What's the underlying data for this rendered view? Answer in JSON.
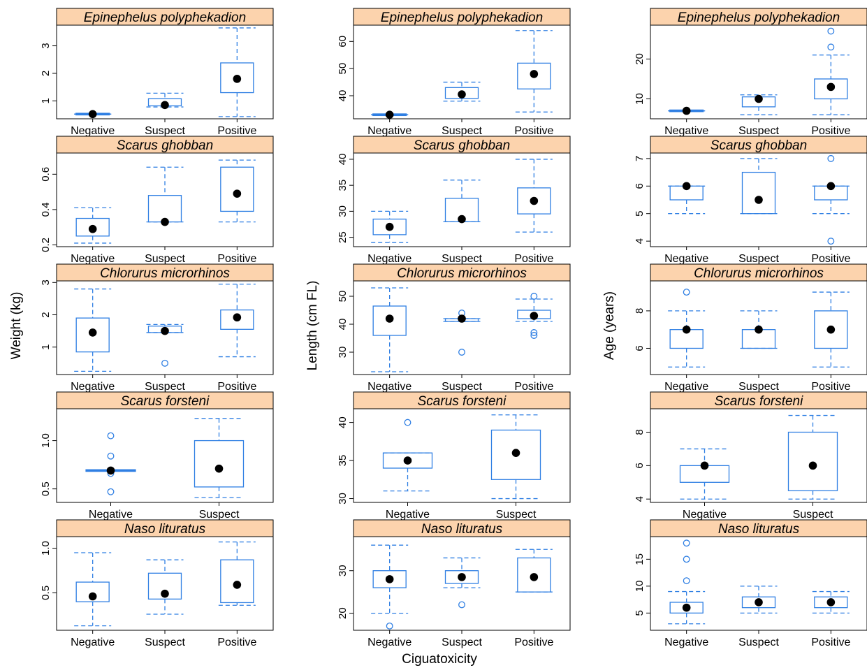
{
  "chart_data": {
    "type": "box",
    "xlabel": "Ciguatoxicity",
    "ylabels": [
      "Weight (kg)",
      "Length (cm FL)",
      "Age (years)"
    ],
    "species": [
      "Epinephelus polyphekadion",
      "Scarus ghobban",
      "Chlorurus microrhinos",
      "Scarus forsteni",
      "Naso lituratus"
    ],
    "panels": [
      {
        "species": "Epinephelus polyphekadion",
        "measure": "Weight (kg)",
        "ylim": [
          0.35,
          3.75
        ],
        "yticks": [
          1,
          2,
          3
        ],
        "groups": [
          {
            "category": "Negative",
            "whisker_low": 0.52,
            "q1": 0.52,
            "q3": 0.52,
            "whisker_high": 0.52,
            "median": 0.52,
            "outliers": []
          },
          {
            "category": "Suspect",
            "whisker_low": 0.78,
            "q1": 0.82,
            "q3": 1.08,
            "whisker_high": 1.28,
            "median": 0.85,
            "outliers": []
          },
          {
            "category": "Positive",
            "whisker_low": 0.43,
            "q1": 1.3,
            "q3": 2.38,
            "whisker_high": 3.65,
            "median": 1.8,
            "outliers": []
          }
        ]
      },
      {
        "species": "Epinephelus polyphekadion",
        "measure": "Length (cm FL)",
        "ylim": [
          31.5,
          66
        ],
        "yticks": [
          40,
          50,
          60
        ],
        "groups": [
          {
            "category": "Negative",
            "whisker_low": 33,
            "q1": 33,
            "q3": 33,
            "whisker_high": 33,
            "median": 33,
            "outliers": []
          },
          {
            "category": "Suspect",
            "whisker_low": 38,
            "q1": 39,
            "q3": 43,
            "whisker_high": 45,
            "median": 40.5,
            "outliers": []
          },
          {
            "category": "Positive",
            "whisker_low": 34,
            "q1": 42.5,
            "q3": 52,
            "whisker_high": 64,
            "median": 48,
            "outliers": []
          }
        ]
      },
      {
        "species": "Epinephelus polyphekadion",
        "measure": "Age (years)",
        "ylim": [
          5,
          28.5
        ],
        "yticks": [
          10,
          20
        ],
        "groups": [
          {
            "category": "Negative",
            "whisker_low": 7,
            "q1": 7,
            "q3": 7,
            "whisker_high": 7,
            "median": 7,
            "outliers": []
          },
          {
            "category": "Suspect",
            "whisker_low": 6,
            "q1": 8,
            "q3": 10.5,
            "whisker_high": 11,
            "median": 10,
            "outliers": []
          },
          {
            "category": "Positive",
            "whisker_low": 6,
            "q1": 10,
            "q3": 15,
            "whisker_high": 21,
            "median": 13,
            "outliers": [
              23,
              27
            ]
          }
        ]
      },
      {
        "species": "Scarus ghobban",
        "measure": "Weight (kg)",
        "ylim": [
          0.19,
          0.72
        ],
        "yticks": [
          0.2,
          0.4,
          0.6
        ],
        "groups": [
          {
            "category": "Negative",
            "whisker_low": 0.21,
            "q1": 0.25,
            "q3": 0.35,
            "whisker_high": 0.41,
            "median": 0.29,
            "outliers": []
          },
          {
            "category": "Suspect",
            "whisker_low": 0.33,
            "q1": 0.33,
            "q3": 0.48,
            "whisker_high": 0.64,
            "median": 0.33,
            "outliers": []
          },
          {
            "category": "Positive",
            "whisker_low": 0.33,
            "q1": 0.39,
            "q3": 0.64,
            "whisker_high": 0.68,
            "median": 0.49,
            "outliers": []
          }
        ]
      },
      {
        "species": "Scarus ghobban",
        "measure": "Length (cm FL)",
        "ylim": [
          23.2,
          41.2
        ],
        "yticks": [
          25,
          30,
          35,
          40
        ],
        "groups": [
          {
            "category": "Negative",
            "whisker_low": 24,
            "q1": 25.5,
            "q3": 28.5,
            "whisker_high": 30,
            "median": 27,
            "outliers": []
          },
          {
            "category": "Suspect",
            "whisker_low": 28,
            "q1": 28,
            "q3": 32.5,
            "whisker_high": 36,
            "median": 28.5,
            "outliers": []
          },
          {
            "category": "Positive",
            "whisker_low": 26,
            "q1": 29.5,
            "q3": 34.5,
            "whisker_high": 40,
            "median": 32,
            "outliers": []
          }
        ]
      },
      {
        "species": "Scarus ghobban",
        "measure": "Age (years)",
        "ylim": [
          3.8,
          7.2
        ],
        "yticks": [
          4,
          5,
          6,
          7
        ],
        "groups": [
          {
            "category": "Negative",
            "whisker_low": 5,
            "q1": 5.5,
            "q3": 6,
            "whisker_high": 6,
            "median": 6,
            "outliers": []
          },
          {
            "category": "Suspect",
            "whisker_low": 5,
            "q1": 5,
            "q3": 6.5,
            "whisker_high": 7,
            "median": 5.5,
            "outliers": []
          },
          {
            "category": "Positive",
            "whisker_low": 5,
            "q1": 5.5,
            "q3": 6,
            "whisker_high": 6,
            "median": 6,
            "outliers": [
              7,
              4
            ]
          }
        ]
      },
      {
        "species": "Chlorurus microrhinos",
        "measure": "Weight (kg)",
        "ylim": [
          0.15,
          3.05
        ],
        "yticks": [
          1,
          2,
          3
        ],
        "groups": [
          {
            "category": "Negative",
            "whisker_low": 0.25,
            "q1": 0.85,
            "q3": 1.9,
            "whisker_high": 2.8,
            "median": 1.45,
            "outliers": []
          },
          {
            "category": "Suspect",
            "whisker_low": 1.45,
            "q1": 1.45,
            "q3": 1.65,
            "whisker_high": 1.7,
            "median": 1.5,
            "outliers": [
              0.5
            ]
          },
          {
            "category": "Positive",
            "whisker_low": 0.7,
            "q1": 1.55,
            "q3": 2.15,
            "whisker_high": 2.95,
            "median": 1.92,
            "outliers": []
          }
        ]
      },
      {
        "species": "Chlorurus microrhinos",
        "measure": "Length (cm FL)",
        "ylim": [
          22,
          55.5
        ],
        "yticks": [
          30,
          40,
          50
        ],
        "groups": [
          {
            "category": "Negative",
            "whisker_low": 23,
            "q1": 36,
            "q3": 46.5,
            "whisker_high": 53,
            "median": 42,
            "outliers": []
          },
          {
            "category": "Suspect",
            "whisker_low": 41,
            "q1": 41,
            "q3": 42,
            "whisker_high": 42,
            "median": 42,
            "outliers": [
              44,
              30
            ]
          },
          {
            "category": "Positive",
            "whisker_low": 41,
            "q1": 42,
            "q3": 45,
            "whisker_high": 49,
            "median": 43,
            "outliers": [
              50,
              37,
              36
            ]
          }
        ]
      },
      {
        "species": "Chlorurus microrhinos",
        "measure": "Age (years)",
        "ylim": [
          4.6,
          9.6
        ],
        "yticks": [
          6,
          8
        ],
        "groups": [
          {
            "category": "Negative",
            "whisker_low": 5,
            "q1": 6,
            "q3": 7,
            "whisker_high": 8,
            "median": 7,
            "outliers": [
              9
            ]
          },
          {
            "category": "Suspect",
            "whisker_low": 6,
            "q1": 6,
            "q3": 7,
            "whisker_high": 8,
            "median": 7,
            "outliers": []
          },
          {
            "category": "Positive",
            "whisker_low": 5,
            "q1": 6,
            "q3": 8,
            "whisker_high": 9,
            "median": 7,
            "outliers": []
          }
        ]
      },
      {
        "species": "Scarus forsteni",
        "measure": "Weight (kg)",
        "ylim": [
          0.36,
          1.33
        ],
        "yticks": [
          0.5,
          1.0
        ],
        "groups": [
          {
            "category": "Negative",
            "whisker_low": 0.69,
            "q1": 0.69,
            "q3": 0.69,
            "whisker_high": 0.69,
            "median": 0.69,
            "outliers": [
              1.05,
              0.84,
              0.66,
              0.47
            ]
          },
          {
            "category": "Suspect",
            "whisker_low": 0.41,
            "q1": 0.52,
            "q3": 1.0,
            "whisker_high": 1.23,
            "median": 0.71,
            "outliers": []
          }
        ]
      },
      {
        "species": "Scarus forsteni",
        "measure": "Length (cm FL)",
        "ylim": [
          29.5,
          41.8
        ],
        "yticks": [
          30,
          35,
          40
        ],
        "groups": [
          {
            "category": "Negative",
            "whisker_low": 31,
            "q1": 34,
            "q3": 36,
            "whisker_high": 36,
            "median": 35,
            "outliers": [
              40
            ]
          },
          {
            "category": "Suspect",
            "whisker_low": 30,
            "q1": 32.5,
            "q3": 39,
            "whisker_high": 41,
            "median": 36,
            "outliers": []
          }
        ]
      },
      {
        "species": "Scarus forsteni",
        "measure": "Age (years)",
        "ylim": [
          3.8,
          9.4
        ],
        "yticks": [
          4,
          6,
          8
        ],
        "groups": [
          {
            "category": "Negative",
            "whisker_low": 4,
            "q1": 5,
            "q3": 6,
            "whisker_high": 7,
            "median": 6,
            "outliers": []
          },
          {
            "category": "Suspect",
            "whisker_low": 4,
            "q1": 4.5,
            "q3": 8,
            "whisker_high": 9,
            "median": 6,
            "outliers": []
          }
        ]
      },
      {
        "species": "Naso lituratus",
        "measure": "Weight (kg)",
        "ylim": [
          0.08,
          1.13
        ],
        "yticks": [
          0.5,
          1.0
        ],
        "groups": [
          {
            "category": "Negative",
            "whisker_low": 0.13,
            "q1": 0.4,
            "q3": 0.62,
            "whisker_high": 0.95,
            "median": 0.46,
            "outliers": []
          },
          {
            "category": "Suspect",
            "whisker_low": 0.26,
            "q1": 0.43,
            "q3": 0.72,
            "whisker_high": 0.87,
            "median": 0.49,
            "outliers": []
          },
          {
            "category": "Positive",
            "whisker_low": 0.36,
            "q1": 0.39,
            "q3": 0.87,
            "whisker_high": 1.07,
            "median": 0.59,
            "outliers": []
          }
        ]
      },
      {
        "species": "Naso lituratus",
        "measure": "Length (cm FL)",
        "ylim": [
          16,
          38
        ],
        "yticks": [
          20,
          30
        ],
        "groups": [
          {
            "category": "Negative",
            "whisker_low": 20,
            "q1": 26,
            "q3": 30,
            "whisker_high": 36,
            "median": 28,
            "outliers": [
              17
            ]
          },
          {
            "category": "Suspect",
            "whisker_low": 26,
            "q1": 27,
            "q3": 30,
            "whisker_high": 33,
            "median": 28.5,
            "outliers": [
              22
            ]
          },
          {
            "category": "Positive",
            "whisker_low": 25,
            "q1": 25,
            "q3": 33,
            "whisker_high": 35,
            "median": 28.5,
            "outliers": []
          }
        ]
      },
      {
        "species": "Naso lituratus",
        "measure": "Age (years)",
        "ylim": [
          1.8,
          19.2
        ],
        "yticks": [
          5,
          10,
          15
        ],
        "groups": [
          {
            "category": "Negative",
            "whisker_low": 3,
            "q1": 5,
            "q3": 7,
            "whisker_high": 9,
            "median": 6,
            "outliers": [
              18,
              15,
              11
            ]
          },
          {
            "category": "Suspect",
            "whisker_low": 5,
            "q1": 6,
            "q3": 8,
            "whisker_high": 10,
            "median": 7,
            "outliers": []
          },
          {
            "category": "Positive",
            "whisker_low": 5,
            "q1": 6,
            "q3": 8,
            "whisker_high": 9,
            "median": 7,
            "outliers": []
          }
        ]
      }
    ],
    "colors": {
      "box": "#2f7fe3",
      "median_point": "#000000",
      "strip_bg": "#fcd3ad",
      "frame": "#000000"
    }
  }
}
